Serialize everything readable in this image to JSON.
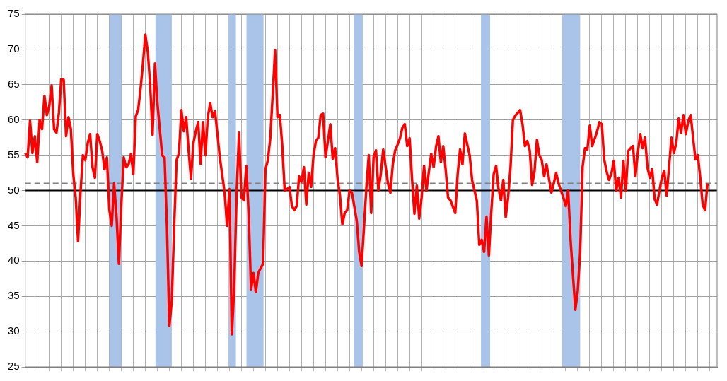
{
  "chart_data": {
    "type": "line",
    "ylim": [
      25,
      75
    ],
    "yticks": [
      25,
      30,
      35,
      40,
      45,
      50,
      55,
      60,
      65,
      70,
      75
    ],
    "categories": [
      null,
      null,
      null,
      null,
      null,
      null,
      null,
      null,
      null,
      null,
      null,
      null,
      null,
      null,
      null,
      null,
      null,
      null,
      null,
      null,
      null,
      null,
      null,
      null,
      null,
      null,
      null,
      null,
      null,
      null,
      null,
      null,
      null,
      null,
      null,
      null,
      null,
      null,
      null,
      null,
      null,
      null,
      null,
      null,
      null,
      null,
      null,
      null,
      null,
      null,
      null,
      null,
      null,
      null,
      null,
      null,
      null,
      null,
      null,
      null,
      null,
      null,
      null,
      null,
      null,
      null,
      null,
      null,
      null,
      null,
      null,
      null,
      null,
      null,
      null,
      null,
      null,
      null,
      null,
      null,
      null,
      null,
      null,
      null,
      null,
      null,
      null,
      null,
      null,
      null,
      null,
      null,
      null,
      null,
      null,
      null,
      null,
      null,
      null,
      null,
      null,
      null,
      null,
      null,
      null,
      null,
      null,
      null,
      null,
      null,
      null,
      null,
      null,
      null,
      null,
      null,
      null,
      null,
      null,
      null,
      null,
      null,
      null,
      null,
      null,
      null,
      null,
      null,
      null,
      null,
      null,
      null,
      null,
      null,
      null,
      null,
      null,
      null,
      null,
      null,
      null,
      null,
      null,
      null,
      null,
      null,
      null,
      null,
      null,
      null,
      null,
      null,
      null,
      null,
      null,
      null,
      null,
      null,
      null,
      null,
      null,
      null,
      null,
      null,
      null,
      null,
      null,
      null,
      null,
      null,
      null,
      null,
      null,
      null,
      null,
      null,
      null,
      null,
      null,
      null,
      null,
      null,
      null,
      null,
      null,
      null,
      null,
      null,
      null,
      null,
      null,
      null,
      null,
      null,
      null,
      null,
      null,
      null,
      null,
      null,
      null,
      null,
      null,
      null,
      null,
      null,
      null,
      null,
      null,
      null,
      null,
      null,
      null,
      null,
      null,
      null,
      null,
      null,
      null,
      null,
      null,
      null,
      null,
      null,
      null,
      null,
      null,
      null,
      null,
      null,
      null,
      null,
      null,
      null,
      null,
      null,
      null,
      null,
      null,
      null,
      null,
      null,
      null,
      null,
      null,
      null,
      null,
      null,
      null,
      null,
      null,
      null,
      null,
      null,
      null,
      null,
      null,
      null,
      null,
      null,
      null,
      null,
      null,
      null,
      null,
      null,
      null,
      null,
      null,
      null,
      null,
      null,
      null,
      null,
      null,
      null,
      null,
      null,
      null,
      null,
      null,
      null,
      null,
      null,
      null,
      null,
      null,
      null,
      null
    ],
    "tick_labels": "y",
    "grid": true,
    "legend": false,
    "marker": "none",
    "line_style": "solid",
    "series": [
      {
        "color": "#ff0000",
        "values": [
          55.3,
          54.7,
          59.9,
          55.3,
          57.7,
          54.0,
          60.0,
          58.7,
          63.4,
          60.7,
          62.0,
          64.9,
          58.7,
          58.2,
          61.0,
          65.8,
          65.7,
          57.7,
          60.4,
          58.7,
          52.3,
          49.0,
          42.8,
          49.7,
          55.0,
          54.3,
          56.7,
          58.0,
          53.3,
          51.8,
          58.0,
          57.0,
          55.7,
          53.0,
          54.7,
          47.3,
          45.0,
          51.0,
          46.3,
          39.6,
          48.0,
          54.7,
          53.3,
          53.7,
          55.2,
          52.3,
          60.5,
          61.4,
          64.4,
          68.0,
          72.1,
          69.7,
          65.0,
          57.9,
          68.0,
          62.4,
          58.7,
          55.0,
          54.7,
          44.7,
          30.8,
          34.3,
          45.0,
          54.3,
          55.3,
          61.4,
          58.4,
          60.4,
          55.7,
          51.7,
          56.7,
          58.4,
          59.7,
          53.8,
          59.7,
          55.0,
          60.4,
          62.4,
          60.4,
          61.2,
          58.0,
          54.7,
          52.2,
          49.7,
          45.0,
          50.2,
          29.6,
          36.3,
          49.7,
          58.2,
          49.0,
          48.6,
          53.5,
          46.7,
          36.0,
          38.3,
          35.6,
          38.3,
          39.0,
          39.6,
          53.0,
          54.3,
          57.4,
          63.5,
          69.9,
          60.4,
          60.7,
          56.3,
          50.0,
          50.2,
          50.5,
          47.8,
          47.2,
          47.8,
          52.0,
          51.2,
          53.3,
          48.0,
          52.5,
          50.5,
          55.0,
          57.0,
          57.5,
          60.7,
          60.9,
          54.7,
          57.0,
          59.4,
          54.5,
          56.0,
          51.7,
          49.3,
          45.2,
          46.8,
          47.2,
          50.0,
          49.7,
          47.7,
          45.7,
          41.3,
          39.3,
          44.7,
          50.4,
          55.0,
          46.8,
          54.7,
          55.7,
          50.0,
          52.3,
          55.8,
          53.4,
          51.0,
          49.7,
          53.7,
          55.7,
          56.5,
          57.4,
          58.9,
          59.4,
          56.3,
          57.4,
          51.7,
          46.7,
          50.7,
          46.0,
          49.0,
          53.5,
          50.0,
          52.6,
          55.2,
          53.3,
          56.2,
          57.7,
          54.0,
          56.3,
          53.0,
          49.0,
          48.6,
          47.7,
          46.8,
          52.3,
          55.8,
          53.7,
          58.1,
          56.5,
          55.0,
          51.5,
          50.0,
          48.5,
          42.3,
          43.0,
          41.3,
          46.3,
          40.8,
          47.0,
          52.3,
          53.5,
          50.3,
          48.6,
          51.5,
          46.2,
          49.0,
          53.3,
          60.0,
          60.6,
          61.0,
          61.4,
          59.4,
          56.3,
          57.0,
          55.7,
          50.8,
          52.7,
          57.2,
          55.0,
          54.3,
          52.0,
          53.7,
          51.7,
          49.7,
          51.0,
          52.5,
          51.0,
          50.0,
          49.0,
          47.8,
          50.0,
          43.0,
          38.0,
          33.1,
          35.8,
          41.3,
          53.3,
          56.0,
          55.8,
          59.2,
          56.3,
          57.3,
          58.3,
          59.7,
          59.4,
          54.4,
          52.7,
          51.5,
          52.4,
          54.2,
          50.0,
          51.8,
          49.0,
          54.2,
          50.0,
          55.6,
          56.0,
          56.3,
          52.0,
          55.3,
          58.0,
          56.0,
          57.5,
          53.3,
          51.8,
          53.0,
          48.8,
          48.0,
          50.0,
          51.8,
          52.8,
          49.3,
          53.3,
          57.5,
          55.3,
          56.7,
          60.2,
          58.2,
          60.7,
          58.0,
          59.8,
          60.7,
          57.5,
          54.4,
          55.0,
          51.7,
          48.0,
          47.2,
          51.0,
          null,
          null,
          null,
          null
        ]
      }
    ],
    "ref_lines": [
      {
        "axis": "y",
        "value": 50,
        "color": "#000000",
        "line_style": "solid"
      },
      {
        "axis": "y",
        "value": 51,
        "color": "#808080",
        "line_style": "dashed"
      }
    ]
  }
}
